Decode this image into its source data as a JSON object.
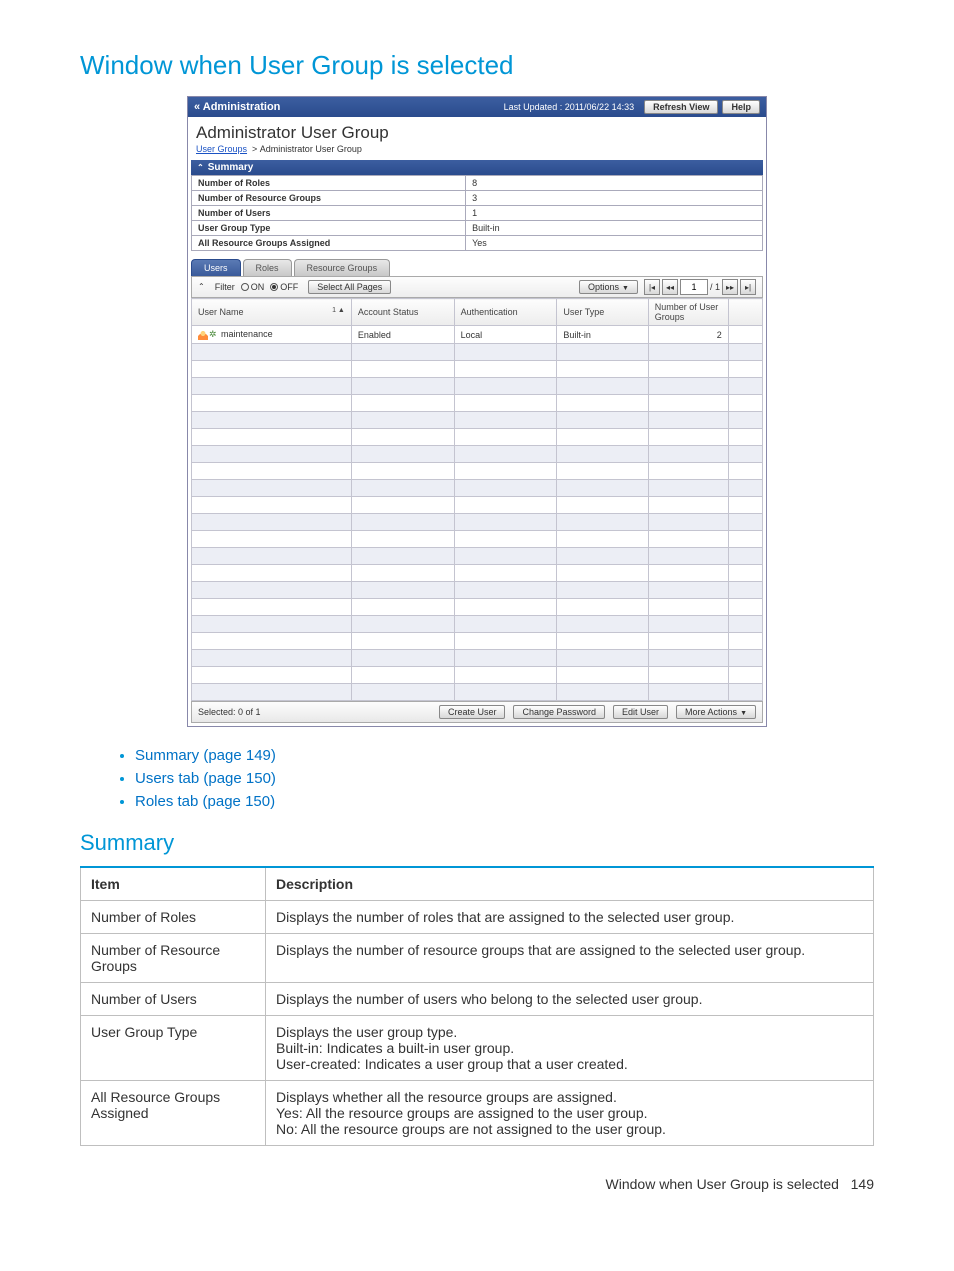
{
  "page": {
    "heading": "Window when User Group is selected",
    "footer_text": "Window when User Group is selected",
    "footer_page": "149"
  },
  "adminbar": {
    "back": "« Administration",
    "timestamp": "Last Updated : 2011/06/22 14:33",
    "refresh": "Refresh View",
    "help": "Help"
  },
  "group": {
    "title": "Administrator User Group",
    "breadcrumb_link": "User Groups",
    "breadcrumb_current": "Administrator User Group"
  },
  "summary": {
    "header": "Summary",
    "rows": [
      {
        "label": "Number of Roles",
        "value": "8"
      },
      {
        "label": "Number of Resource Groups",
        "value": "3"
      },
      {
        "label": "Number of Users",
        "value": "1"
      },
      {
        "label": "User Group Type",
        "value": "Built-in"
      },
      {
        "label": "All Resource Groups Assigned",
        "value": "Yes"
      }
    ]
  },
  "tabs": {
    "users": "Users",
    "roles": "Roles",
    "resource_groups": "Resource Groups"
  },
  "filter": {
    "label": "Filter",
    "on": "ON",
    "off": "OFF",
    "select_all": "Select All Pages",
    "options": "Options",
    "page_current": "1",
    "page_total": "/ 1"
  },
  "users_table": {
    "columns": {
      "user_name": "User Name",
      "sort_indicator": "1 ▲",
      "account_status": "Account Status",
      "authentication": "Authentication",
      "user_type": "User Type",
      "num_groups": "Number of User Groups"
    },
    "row": {
      "user_name": "maintenance",
      "account_status": "Enabled",
      "authentication": "Local",
      "user_type": "Built-in",
      "num_groups": "2"
    }
  },
  "footer": {
    "selected": "Selected:  0   of  1",
    "create_user": "Create User",
    "change_password": "Change Password",
    "edit_user": "Edit User",
    "more_actions": "More Actions"
  },
  "links": [
    "Summary (page 149)",
    "Users tab (page 150)",
    "Roles tab (page 150)"
  ],
  "section2": {
    "heading": "Summary",
    "header_item": "Item",
    "header_desc": "Description",
    "rows": [
      {
        "item": "Number of Roles",
        "desc": "Displays the number of roles that are assigned to the selected user group."
      },
      {
        "item": "Number of Resource Groups",
        "desc": "Displays the number of resource groups that are assigned to the selected user group."
      },
      {
        "item": "Number of Users",
        "desc": "Displays the number of users who belong to the selected user group."
      },
      {
        "item": "User Group Type",
        "desc": "Displays the user group type.\nBuilt-in: Indicates a built-in user group.\nUser-created: Indicates a user group that a user created."
      },
      {
        "item": "All Resource Groups Assigned",
        "desc": "Displays whether all the resource groups are assigned.\nYes: All the resource groups are assigned to the user group.\nNo: All the resource groups are not assigned to the user group."
      }
    ]
  }
}
